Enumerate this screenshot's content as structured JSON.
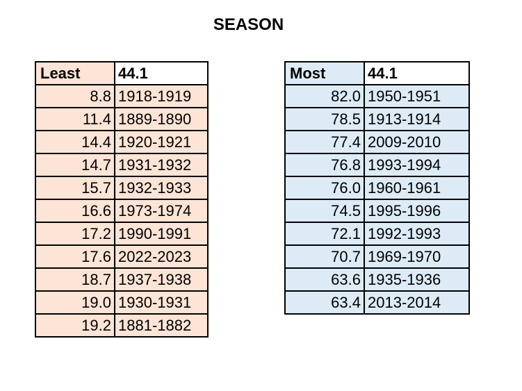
{
  "title": "SEASON",
  "colors": {
    "least_fill": "#FCE4D6",
    "most_fill": "#DDEBF7"
  },
  "least": {
    "header_label": "Least",
    "header_value": "44.1",
    "rows": [
      {
        "value": "8.8",
        "season": "1918-1919"
      },
      {
        "value": "11.4",
        "season": "1889-1890"
      },
      {
        "value": "14.4",
        "season": "1920-1921"
      },
      {
        "value": "14.7",
        "season": "1931-1932"
      },
      {
        "value": "15.7",
        "season": "1932-1933"
      },
      {
        "value": "16.6",
        "season": "1973-1974"
      },
      {
        "value": "17.2",
        "season": "1990-1991"
      },
      {
        "value": "17.6",
        "season": "2022-2023"
      },
      {
        "value": "18.7",
        "season": "1937-1938"
      },
      {
        "value": "19.0",
        "season": "1930-1931"
      },
      {
        "value": "19.2",
        "season": "1881-1882"
      }
    ]
  },
  "most": {
    "header_label": "Most",
    "header_value": "44.1",
    "rows": [
      {
        "value": "82.0",
        "season": "1950-1951"
      },
      {
        "value": "78.5",
        "season": "1913-1914"
      },
      {
        "value": "77.4",
        "season": "2009-2010"
      },
      {
        "value": "76.8",
        "season": "1993-1994"
      },
      {
        "value": "76.0",
        "season": "1960-1961"
      },
      {
        "value": "74.5",
        "season": "1995-1996"
      },
      {
        "value": "72.1",
        "season": "1992-1993"
      },
      {
        "value": "70.7",
        "season": "1969-1970"
      },
      {
        "value": "63.6",
        "season": "1935-1936"
      },
      {
        "value": "63.4",
        "season": "2013-2014"
      }
    ]
  }
}
